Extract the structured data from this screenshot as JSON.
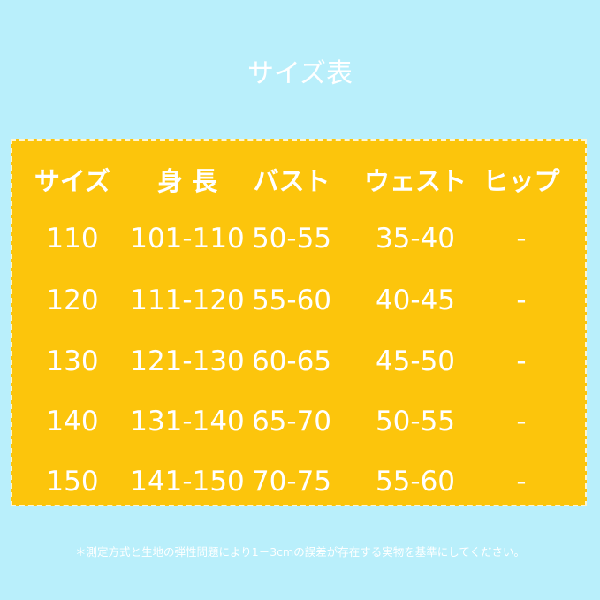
{
  "title": "サイズ表",
  "table": {
    "headers": [
      "サイズ",
      "身 長",
      "バスト",
      "ウェスト",
      "ヒップ"
    ],
    "rows": [
      [
        "110",
        "101-110",
        "50-55",
        "35-40",
        "-"
      ],
      [
        "120",
        "111-120",
        "55-60",
        "40-45",
        "-"
      ],
      [
        "130",
        "121-130",
        "60-65",
        "45-50",
        "-"
      ],
      [
        "140",
        "131-140",
        "65-70",
        "50-55",
        "-"
      ],
      [
        "150",
        "141-150",
        "70-75",
        "55-60",
        "-"
      ]
    ]
  },
  "note": "＊測定方式と生地の弾性問題により1－3cmの誤差が存在する実物を基準にしてください。",
  "colors": {
    "background": "#b9effb",
    "table": "#fcc50c",
    "text": "#ffffff"
  }
}
